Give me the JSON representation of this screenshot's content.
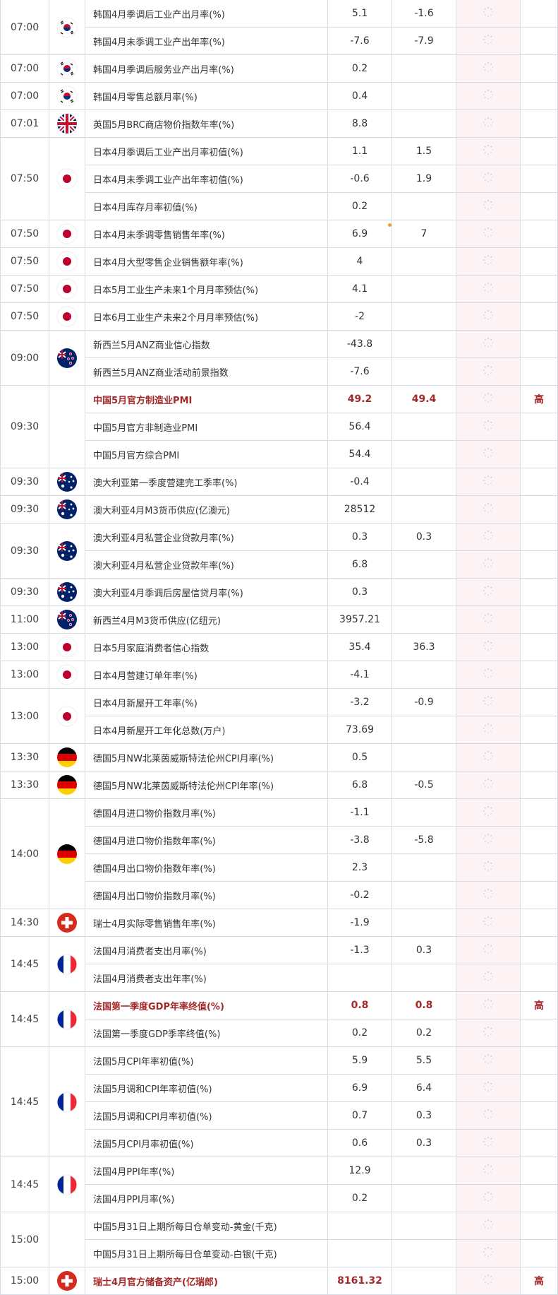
{
  "colors": {
    "highlight": "#a3282a",
    "pending_column": "#fdf3f4",
    "border": "#d6dce6",
    "pending_dot": "#f0a030"
  },
  "groups": [
    {
      "time": "07:00",
      "flag": "south-korea",
      "rows": [
        {
          "name": "韩国4月季调后工业产出月率(%)",
          "actual": "5.1",
          "forecast": "-1.6"
        },
        {
          "name": "韩国4月未季调工业产出年率(%)",
          "actual": "-7.6",
          "forecast": "-7.9"
        }
      ]
    },
    {
      "time": "07:00",
      "flag": "south-korea",
      "rows": [
        {
          "name": "韩国4月季调后服务业产出月率(%)",
          "actual": "0.2"
        }
      ]
    },
    {
      "time": "07:00",
      "flag": "south-korea",
      "rows": [
        {
          "name": "韩国4月零售总额月率(%)",
          "actual": "0.4"
        }
      ]
    },
    {
      "time": "07:01",
      "flag": "uk",
      "rows": [
        {
          "name": "英国5月BRC商店物价指数年率(%)",
          "actual": "8.8"
        }
      ]
    },
    {
      "time": "07:50",
      "flag": "japan",
      "rows": [
        {
          "name": "日本4月季调后工业产出月率初值(%)",
          "actual": "1.1",
          "forecast": "1.5"
        },
        {
          "name": "日本4月未季调工业产出年率初值(%)",
          "actual": "-0.6",
          "forecast": "1.9"
        },
        {
          "name": "日本4月库存月率初值(%)",
          "actual": "0.2"
        }
      ]
    },
    {
      "time": "07:50",
      "flag": "japan",
      "rows": [
        {
          "name": "日本4月未季调零售销售年率(%)",
          "actual": "6.9",
          "forecast": "7",
          "dot": true
        }
      ]
    },
    {
      "time": "07:50",
      "flag": "japan",
      "rows": [
        {
          "name": "日本4月大型零售企业销售额年率(%)",
          "actual": "4"
        }
      ]
    },
    {
      "time": "07:50",
      "flag": "japan",
      "rows": [
        {
          "name": "日本5月工业生产未来1个月月率预估(%)",
          "actual": "4.1"
        }
      ]
    },
    {
      "time": "07:50",
      "flag": "japan",
      "rows": [
        {
          "name": "日本6月工业生产未来2个月月率预估(%)",
          "actual": "-2"
        }
      ]
    },
    {
      "time": "09:00",
      "flag": "new-zealand",
      "rows": [
        {
          "name": "新西兰5月ANZ商业信心指数",
          "actual": "-43.8"
        },
        {
          "name": "新西兰5月ANZ商业活动前景指数",
          "actual": "-7.6"
        }
      ]
    },
    {
      "time": "09:30",
      "flag": "",
      "rows": [
        {
          "name": "中国5月官方制造业PMI",
          "actual": "49.2",
          "forecast": "49.4",
          "importance": "高",
          "high": true
        },
        {
          "name": "中国5月官方非制造业PMI",
          "actual": "56.4"
        },
        {
          "name": "中国5月官方综合PMI",
          "actual": "54.4"
        }
      ]
    },
    {
      "time": "09:30",
      "flag": "australia",
      "rows": [
        {
          "name": "澳大利亚第一季度营建完工季率(%)",
          "actual": "-0.4"
        }
      ]
    },
    {
      "time": "09:30",
      "flag": "australia",
      "rows": [
        {
          "name": "澳大利亚4月M3货币供应(亿澳元)",
          "actual": "28512"
        }
      ]
    },
    {
      "time": "09:30",
      "flag": "australia",
      "rows": [
        {
          "name": "澳大利亚4月私营企业贷款月率(%)",
          "actual": "0.3",
          "forecast": "0.3"
        },
        {
          "name": "澳大利亚4月私营企业贷款年率(%)",
          "actual": "6.8"
        }
      ]
    },
    {
      "time": "09:30",
      "flag": "australia",
      "rows": [
        {
          "name": "澳大利亚4月季调后房屋信贷月率(%)",
          "actual": "0.3"
        }
      ]
    },
    {
      "time": "11:00",
      "flag": "new-zealand",
      "rows": [
        {
          "name": "新西兰4月M3货币供应(亿纽元)",
          "actual": "3957.21"
        }
      ]
    },
    {
      "time": "13:00",
      "flag": "japan",
      "rows": [
        {
          "name": "日本5月家庭消费者信心指数",
          "actual": "35.4",
          "forecast": "36.3"
        }
      ]
    },
    {
      "time": "13:00",
      "flag": "japan",
      "rows": [
        {
          "name": "日本4月营建订单年率(%)",
          "actual": "-4.1"
        }
      ]
    },
    {
      "time": "13:00",
      "flag": "japan",
      "rows": [
        {
          "name": "日本4月新屋开工年率(%)",
          "actual": "-3.2",
          "forecast": "-0.9"
        },
        {
          "name": "日本4月新屋开工年化总数(万户)",
          "actual": "73.69"
        }
      ]
    },
    {
      "time": "13:30",
      "flag": "germany",
      "rows": [
        {
          "name": "德国5月NW北莱茵威斯特法伦州CPI月率(%)",
          "actual": "0.5"
        }
      ]
    },
    {
      "time": "13:30",
      "flag": "germany",
      "rows": [
        {
          "name": "德国5月NW北莱茵威斯特法伦州CPI年率(%)",
          "actual": "6.8",
          "forecast": "-0.5"
        }
      ]
    },
    {
      "time": "14:00",
      "flag": "germany",
      "rows": [
        {
          "name": "德国4月进口物价指数月率(%)",
          "actual": "-1.1"
        },
        {
          "name": "德国4月进口物价指数年率(%)",
          "actual": "-3.8",
          "forecast": "-5.8"
        },
        {
          "name": "德国4月出口物价指数年率(%)",
          "actual": "2.3"
        },
        {
          "name": "德国4月出口物价指数月率(%)",
          "actual": "-0.2"
        }
      ]
    },
    {
      "time": "14:30",
      "flag": "switzerland",
      "rows": [
        {
          "name": "瑞士4月实际零售销售年率(%)",
          "actual": "-1.9"
        }
      ]
    },
    {
      "time": "14:45",
      "flag": "france",
      "rows": [
        {
          "name": "法国4月消费者支出月率(%)",
          "actual": "-1.3",
          "forecast": "0.3"
        },
        {
          "name": "法国4月消费者支出年率(%)"
        }
      ]
    },
    {
      "time": "14:45",
      "flag": "france",
      "rows": [
        {
          "name": "法国第一季度GDP年率终值(%)",
          "actual": "0.8",
          "forecast": "0.8",
          "importance": "高",
          "high": true
        },
        {
          "name": "法国第一季度GDP季率终值(%)",
          "actual": "0.2",
          "forecast": "0.2"
        }
      ]
    },
    {
      "time": "14:45",
      "flag": "france",
      "rows": [
        {
          "name": "法国5月CPI年率初值(%)",
          "actual": "5.9",
          "forecast": "5.5"
        },
        {
          "name": "法国5月调和CPI年率初值(%)",
          "actual": "6.9",
          "forecast": "6.4"
        },
        {
          "name": "法国5月调和CPI月率初值(%)",
          "actual": "0.7",
          "forecast": "0.3"
        },
        {
          "name": "法国5月CPI月率初值(%)",
          "actual": "0.6",
          "forecast": "0.3"
        }
      ]
    },
    {
      "time": "14:45",
      "flag": "france",
      "rows": [
        {
          "name": "法国4月PPI年率(%)",
          "actual": "12.9"
        },
        {
          "name": "法国4月PPI月率(%)",
          "actual": "0.2"
        }
      ]
    },
    {
      "time": "15:00",
      "flag": "",
      "rows": [
        {
          "name": "中国5月31日上期所每日仓单变动-黄金(千克)"
        },
        {
          "name": "中国5月31日上期所每日仓单变动-白银(千克)"
        }
      ]
    },
    {
      "time": "15:00",
      "flag": "switzerland",
      "rows": [
        {
          "name": "瑞士4月官方储备资产(亿瑞郎)",
          "actual": "8161.32",
          "importance": "高",
          "high": true
        }
      ]
    }
  ]
}
